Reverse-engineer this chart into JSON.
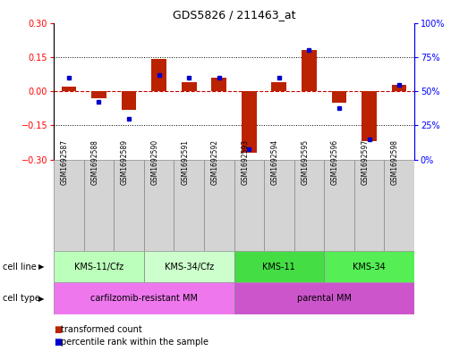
{
  "title": "GDS5826 / 211463_at",
  "samples": [
    "GSM1692587",
    "GSM1692588",
    "GSM1692589",
    "GSM1692590",
    "GSM1692591",
    "GSM1692592",
    "GSM1692593",
    "GSM1692594",
    "GSM1692595",
    "GSM1692596",
    "GSM1692597",
    "GSM1692598"
  ],
  "transformed_count": [
    0.02,
    -0.03,
    -0.08,
    0.14,
    0.04,
    0.06,
    -0.27,
    0.04,
    0.18,
    -0.05,
    -0.22,
    0.03
  ],
  "percentile_rank": [
    60,
    42,
    30,
    62,
    60,
    60,
    8,
    60,
    80,
    38,
    15,
    55
  ],
  "cell_line_groups": [
    {
      "label": "KMS-11/Cfz",
      "start": 0,
      "end": 3,
      "color": "#bbffbb"
    },
    {
      "label": "KMS-34/Cfz",
      "start": 3,
      "end": 6,
      "color": "#ccffcc"
    },
    {
      "label": "KMS-11",
      "start": 6,
      "end": 9,
      "color": "#44dd44"
    },
    {
      "label": "KMS-34",
      "start": 9,
      "end": 12,
      "color": "#55ee55"
    }
  ],
  "cell_type_groups": [
    {
      "label": "carfilzomib-resistant MM",
      "start": 0,
      "end": 6,
      "color": "#ee77ee"
    },
    {
      "label": "parental MM",
      "start": 6,
      "end": 12,
      "color": "#cc55cc"
    }
  ],
  "ylim": [
    -0.3,
    0.3
  ],
  "yticks_left": [
    -0.3,
    -0.15,
    0.0,
    0.15,
    0.3
  ],
  "yticks_right": [
    0,
    25,
    50,
    75,
    100
  ],
  "bar_color": "#bb2200",
  "dot_color": "#0000cc",
  "hline_color": "#cc0000",
  "dotline_color": "black",
  "sample_box_color": "#d4d4d4",
  "legend_red": "transformed count",
  "legend_blue": "percentile rank within the sample",
  "bar_width": 0.5
}
